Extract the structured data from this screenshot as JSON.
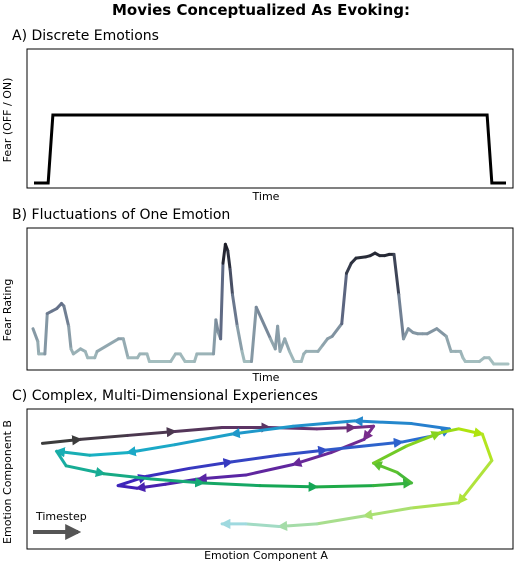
{
  "figure": {
    "title": "Movies Conceptualized As Evoking:"
  },
  "chart_data": [
    {
      "type": "line",
      "title": "A) Discrete Emotions",
      "xlabel": "Time",
      "ylabel": "Fear (OFF / ON)",
      "ylim": [
        0,
        1
      ],
      "grid": false,
      "x": [
        0,
        0.03,
        0.04,
        0.96,
        0.97,
        1.0
      ],
      "series": [
        {
          "values": [
            0,
            0,
            1,
            1,
            0,
            0
          ],
          "color": "#000000"
        }
      ]
    },
    {
      "type": "line",
      "title": "B) Fluctuations of One Emotion",
      "xlabel": "Time",
      "ylabel": "Fear Rating",
      "ylim": [
        0,
        1
      ],
      "grid": false,
      "color_scale": [
        "#a7c1c1",
        "#5f6a84",
        "#111118"
      ],
      "x": [
        0,
        0.01,
        0.012,
        0.025,
        0.03,
        0.04,
        0.05,
        0.06,
        0.065,
        0.075,
        0.08,
        0.085,
        0.1,
        0.11,
        0.115,
        0.13,
        0.135,
        0.18,
        0.19,
        0.2,
        0.22,
        0.225,
        0.24,
        0.245,
        0.29,
        0.3,
        0.31,
        0.32,
        0.34,
        0.345,
        0.38,
        0.385,
        0.39,
        0.395,
        0.4,
        0.405,
        0.41,
        0.415,
        0.42,
        0.43,
        0.44,
        0.445,
        0.46,
        0.47,
        0.5,
        0.51,
        0.515,
        0.52,
        0.53,
        0.54,
        0.55,
        0.555,
        0.56,
        0.565,
        0.57,
        0.575,
        0.6,
        0.61,
        0.62,
        0.63,
        0.65,
        0.66,
        0.67,
        0.68,
        0.7,
        0.71,
        0.72,
        0.73,
        0.74,
        0.75,
        0.76,
        0.77,
        0.78,
        0.79,
        0.8,
        0.81,
        0.82,
        0.83,
        0.85,
        0.87,
        0.88,
        0.89,
        0.9,
        0.905,
        0.91,
        0.93,
        0.94,
        0.95,
        0.96,
        0.97,
        1.0
      ],
      "series": [
        {
          "name": "",
          "values": [
            0.28,
            0.18,
            0.08,
            0.08,
            0.4,
            0.42,
            0.44,
            0.48,
            0.46,
            0.3,
            0.12,
            0.08,
            0.12,
            0.1,
            0.05,
            0.05,
            0.1,
            0.2,
            0.2,
            0.05,
            0.05,
            0.08,
            0.08,
            0.02,
            0.02,
            0.08,
            0.08,
            0.02,
            0.02,
            0.08,
            0.08,
            0.35,
            0.25,
            0.2,
            0.8,
            0.95,
            0.9,
            0.75,
            0.55,
            0.3,
            0.1,
            0.02,
            0.02,
            0.45,
            0.2,
            0.12,
            0.3,
            0.1,
            0.2,
            0.1,
            0.02,
            0.02,
            0.02,
            0.02,
            0.08,
            0.1,
            0.1,
            0.15,
            0.2,
            0.22,
            0.32,
            0.72,
            0.8,
            0.84,
            0.85,
            0.86,
            0.88,
            0.86,
            0.86,
            0.87,
            0.87,
            0.55,
            0.2,
            0.28,
            0.25,
            0.24,
            0.24,
            0.24,
            0.28,
            0.22,
            0.1,
            0.1,
            0.1,
            0.05,
            0.02,
            0.02,
            0.02,
            0.05,
            0.05,
            0.0,
            0.0
          ]
        }
      ]
    },
    {
      "type": "line",
      "title": "C) Complex, Multi-Dimensional Experiences",
      "xlabel": "Emotion Component A",
      "ylabel": "Emotion Component B",
      "grid": false,
      "legend": {
        "label": "Timestep",
        "placement": "bottom-left"
      },
      "color_scale": [
        "#3c3c3c",
        "#7a2c8a",
        "#3e1fb8",
        "#2a6fd0",
        "#19b0c6",
        "#15a54c",
        "#b5e60c",
        "#9fd9df"
      ],
      "series": [
        {
          "name": "",
          "x": [
            0.02,
            0.1,
            0.2,
            0.3,
            0.4,
            0.5,
            0.6,
            0.68,
            0.72,
            0.7,
            0.63,
            0.55,
            0.45,
            0.35,
            0.28,
            0.22,
            0.18,
            0.24,
            0.33,
            0.42,
            0.52,
            0.62,
            0.7,
            0.78,
            0.85,
            0.88,
            0.8,
            0.68,
            0.55,
            0.42,
            0.3,
            0.2,
            0.12,
            0.05,
            0.07,
            0.15,
            0.25,
            0.36,
            0.48,
            0.6,
            0.72,
            0.8,
            0.77,
            0.72,
            0.79,
            0.86,
            0.9,
            0.95,
            0.97,
            0.9,
            0.8,
            0.7,
            0.6,
            0.52,
            0.45,
            0.4
          ],
          "y": [
            0.77,
            0.8,
            0.83,
            0.86,
            0.89,
            0.89,
            0.88,
            0.89,
            0.9,
            0.8,
            0.7,
            0.61,
            0.53,
            0.5,
            0.46,
            0.43,
            0.45,
            0.52,
            0.58,
            0.63,
            0.68,
            0.72,
            0.75,
            0.78,
            0.83,
            0.88,
            0.92,
            0.94,
            0.9,
            0.84,
            0.76,
            0.7,
            0.68,
            0.71,
            0.6,
            0.54,
            0.5,
            0.47,
            0.45,
            0.44,
            0.45,
            0.47,
            0.55,
            0.62,
            0.75,
            0.85,
            0.88,
            0.84,
            0.64,
            0.32,
            0.28,
            0.22,
            0.16,
            0.14,
            0.16,
            0.16
          ],
          "arrows_every": 2
        }
      ]
    }
  ]
}
